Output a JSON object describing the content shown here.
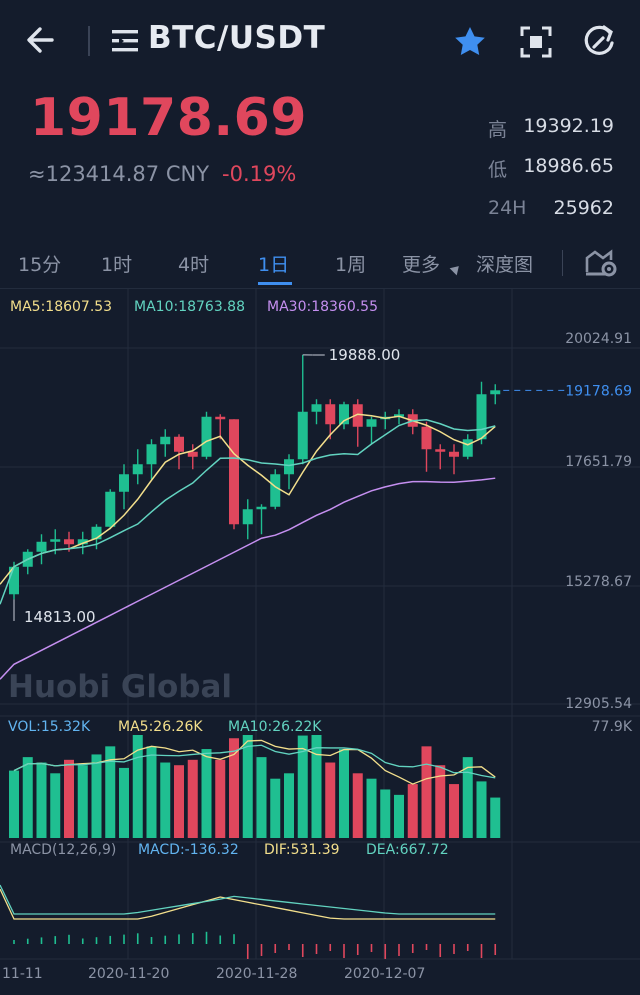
{
  "header": {
    "pair": "BTC/USDT",
    "back_icon": "arrow-left-icon",
    "favorite_color": "#3f8ff0"
  },
  "ticker": {
    "price": "19178.69",
    "cny": "≈123414.87 CNY",
    "change": "-0.19%",
    "high_label": "高",
    "high": "19392.19",
    "low_label": "低",
    "low": "18986.65",
    "vol_label": "24H",
    "vol": "25962"
  },
  "tabs": [
    "15分",
    "1时",
    "4时",
    "1日",
    "1周",
    "更多",
    "深度图"
  ],
  "active_tab": "1日",
  "chart_data": {
    "type": "candlestick",
    "title": "",
    "price_axis": [
      "20024.91",
      "17651.79",
      "15278.67",
      "12905.54"
    ],
    "ma_labels": {
      "ma5": "MA5:18607.53",
      "ma10": "MA10:18763.88",
      "ma30": "MA30:18360.55"
    },
    "annotations": {
      "high": "19888.00",
      "low": "14813.00",
      "last": "19178.69"
    },
    "watermark": "Huobi Global",
    "candles": [
      [
        15100,
        15650,
        15000,
        15750
      ],
      [
        15650,
        15950,
        15500,
        16000
      ],
      [
        15950,
        16150,
        15700,
        16300
      ],
      [
        16150,
        16200,
        15900,
        16400
      ],
      [
        16200,
        16100,
        15950,
        16350
      ],
      [
        16100,
        16200,
        15900,
        16350
      ],
      [
        16200,
        16450,
        16000,
        16500
      ],
      [
        16450,
        17150,
        16400,
        17200
      ],
      [
        17150,
        17500,
        16800,
        17700
      ],
      [
        17500,
        17700,
        17300,
        18000
      ],
      [
        17700,
        18100,
        17400,
        18200
      ],
      [
        18100,
        18250,
        17850,
        18400
      ],
      [
        18250,
        17950,
        17600,
        18300
      ],
      [
        17950,
        17850,
        17600,
        18100
      ],
      [
        17850,
        18650,
        17800,
        18750
      ],
      [
        18650,
        18600,
        18200,
        18700
      ],
      [
        18600,
        16500,
        16400,
        18600
      ],
      [
        16500,
        16800,
        16200,
        17000
      ],
      [
        16800,
        16850,
        16300,
        16900
      ],
      [
        16850,
        17500,
        16800,
        17600
      ],
      [
        17500,
        17800,
        17200,
        17900
      ],
      [
        17800,
        18750,
        17700,
        19888
      ],
      [
        18750,
        18900,
        18500,
        19000
      ],
      [
        18900,
        18500,
        18200,
        19000
      ],
      [
        18500,
        18900,
        18400,
        18950
      ],
      [
        18900,
        18450,
        18050,
        19000
      ],
      [
        18450,
        18600,
        18100,
        18650
      ],
      [
        18600,
        18650,
        18400,
        18750
      ],
      [
        18650,
        18700,
        18500,
        18800
      ],
      [
        18700,
        18450,
        18300,
        18800
      ],
      [
        18450,
        18000,
        17550,
        18550
      ],
      [
        18000,
        17950,
        17600,
        18100
      ],
      [
        17950,
        17850,
        17500,
        18100
      ],
      [
        17850,
        18200,
        17800,
        18300
      ],
      [
        18200,
        19100,
        18100,
        19350
      ],
      [
        19100,
        19178.69,
        18900,
        19300
      ]
    ],
    "ma_color": {
      "ma5": "#f3df8c",
      "ma10": "#62d3c0",
      "ma30": "#c58ff0"
    },
    "volume_labels": {
      "vol": "VOL:15.32K",
      "ma5": "MA5:26.26K",
      "ma10": "MA10:26.22K",
      "max": "77.9K"
    },
    "volumes": [
      25,
      30,
      28,
      24,
      29,
      27,
      31,
      34,
      26,
      45,
      34,
      28,
      27,
      29,
      33,
      29,
      37,
      52,
      30,
      22,
      24,
      38,
      41,
      28,
      33,
      24,
      22,
      18,
      16,
      20,
      34,
      27,
      20,
      30,
      21,
      15
    ],
    "macd_labels": {
      "name": "MACD(12,26,9)",
      "macd": "MACD:-136.32",
      "dif": "DIF:531.39",
      "dea": "DEA:667.72"
    },
    "dates": [
      "11-11",
      "2020-11-20",
      "2020-11-28",
      "2020-12-07"
    ],
    "colors": {
      "up": "#1fbf91",
      "down": "#e0475d"
    }
  }
}
